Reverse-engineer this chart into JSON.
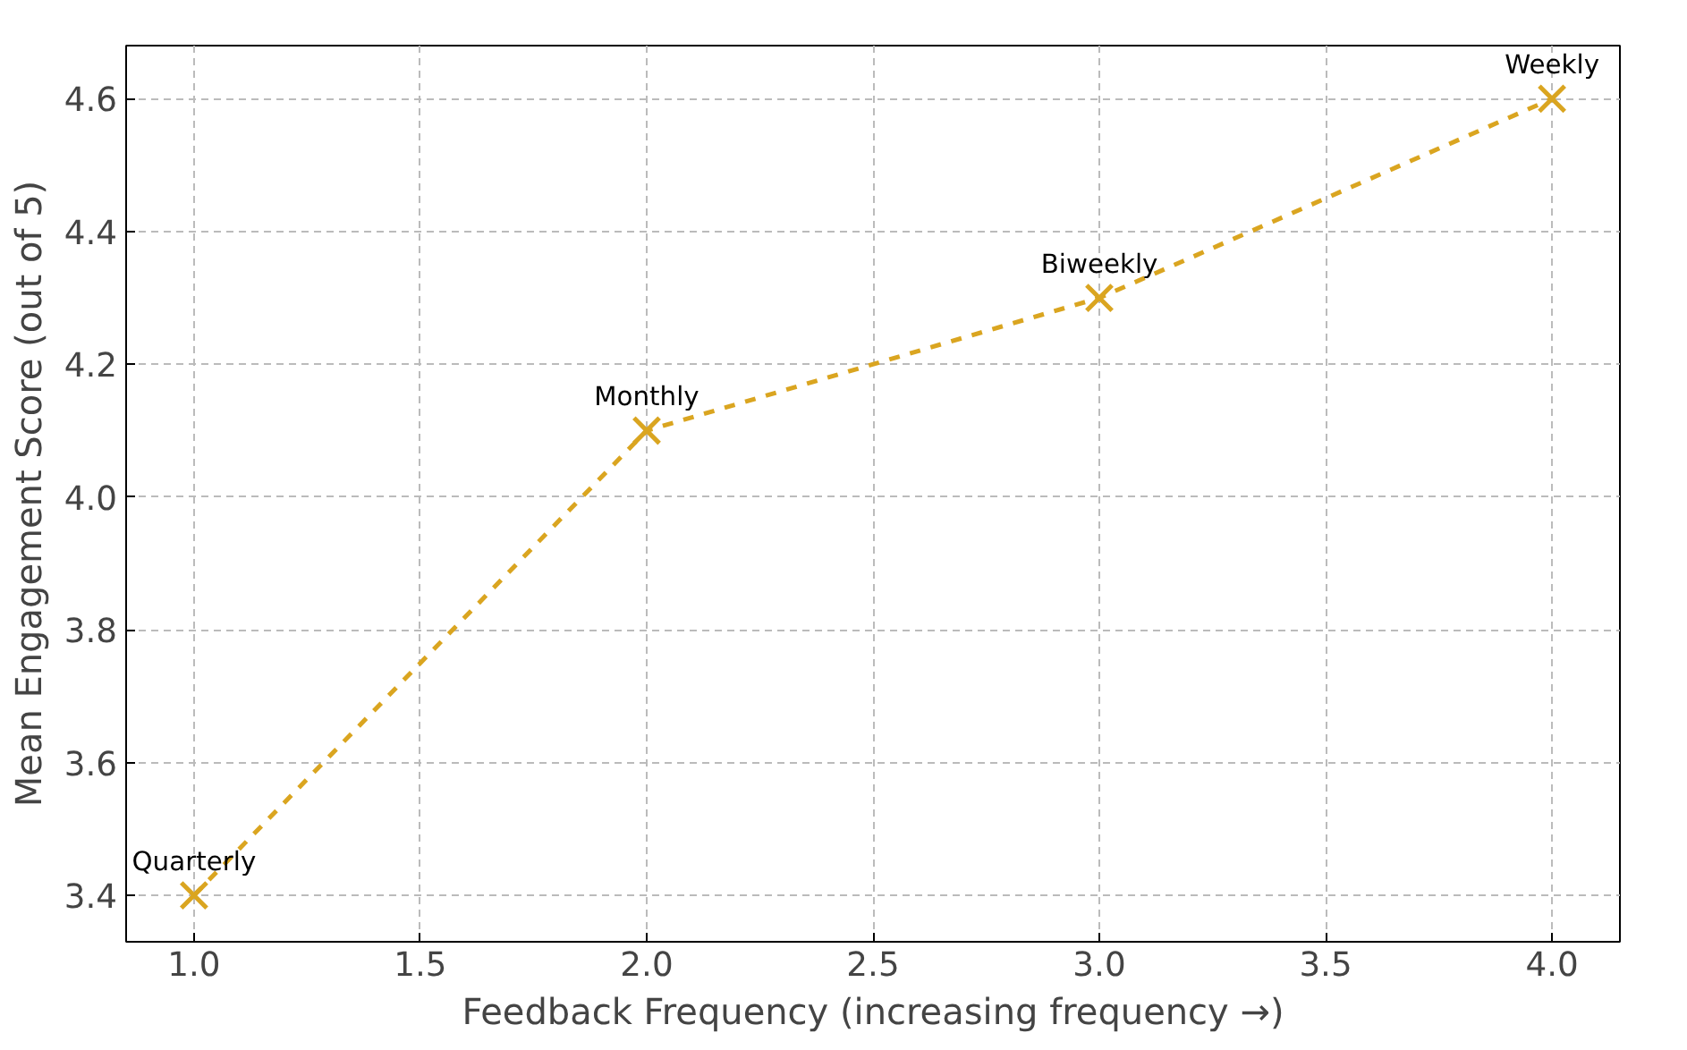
{
  "chart_data": {
    "type": "line",
    "xlabel": "Feedback Frequency (increasing frequency →)",
    "ylabel": "Mean Engagement Score (out of 5)",
    "x": [
      1,
      2,
      3,
      4
    ],
    "series": [
      {
        "color": "#daa520",
        "values": [
          3.4,
          4.1,
          4.3,
          4.6
        ]
      }
    ],
    "marker": "cross",
    "line_style": "dashed",
    "grid": true,
    "xlim": [
      0.85,
      4.15
    ],
    "ylim": [
      3.33,
      4.68
    ],
    "xticks": [
      {
        "value": 1,
        "label": "1.0"
      },
      {
        "value": 1.5,
        "label": "1.5"
      },
      {
        "value": 2,
        "label": "2.0"
      },
      {
        "value": 2.5,
        "label": "2.5"
      },
      {
        "value": 3,
        "label": "3.0"
      },
      {
        "value": 3.5,
        "label": "3.5"
      },
      {
        "value": 4,
        "label": "4.0"
      }
    ],
    "yticks": [
      {
        "value": 3.4,
        "label": "3.4"
      },
      {
        "value": 3.6,
        "label": "3.6"
      },
      {
        "value": 3.8,
        "label": "3.8"
      },
      {
        "value": 4.0,
        "label": "4.0"
      },
      {
        "value": 4.2,
        "label": "4.2"
      },
      {
        "value": 4.4,
        "label": "4.4"
      },
      {
        "value": 4.6,
        "label": "4.6"
      }
    ],
    "annotations": [
      {
        "text": "Quarterly",
        "x": 1,
        "y": 3.4
      },
      {
        "text": "Monthly",
        "x": 2,
        "y": 4.1
      },
      {
        "text": "Biweekly",
        "x": 3,
        "y": 4.3
      },
      {
        "text": "Weekly",
        "x": 4,
        "y": 4.6
      }
    ]
  }
}
